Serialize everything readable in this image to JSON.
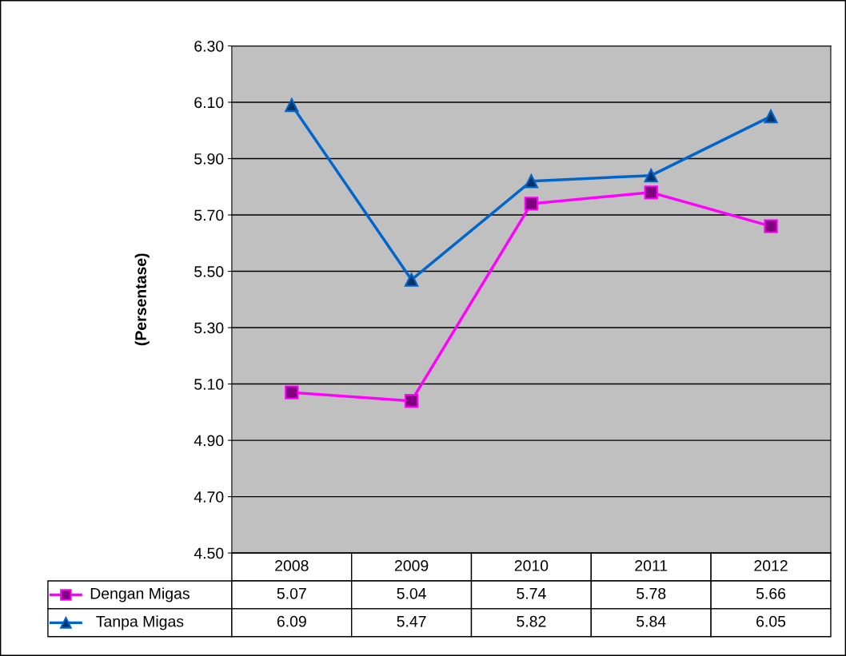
{
  "chart_data": {
    "type": "line",
    "ylabel": "(Persentase)",
    "categories": [
      "2008",
      "2009",
      "2010",
      "2011",
      "2012"
    ],
    "series": [
      {
        "name": "Dengan Migas",
        "color": "#ff00ff",
        "marker": "square",
        "values": [
          5.07,
          5.04,
          5.74,
          5.78,
          5.66
        ]
      },
      {
        "name": "Tanpa Migas",
        "color": "#0066cc",
        "marker": "triangle",
        "values": [
          6.09,
          5.47,
          5.82,
          5.84,
          6.05
        ]
      }
    ],
    "ylim": [
      4.5,
      6.3
    ],
    "yticks": [
      {
        "value": 4.5,
        "label": "4.50"
      },
      {
        "value": 4.7,
        "label": "4.70"
      },
      {
        "value": 4.9,
        "label": "4.90"
      },
      {
        "value": 5.1,
        "label": "5.10"
      },
      {
        "value": 5.3,
        "label": "5.30"
      },
      {
        "value": 5.5,
        "label": "5.50"
      },
      {
        "value": 5.7,
        "label": "5.70"
      },
      {
        "value": 5.9,
        "label": "5.90"
      },
      {
        "value": 6.1,
        "label": "6.10"
      },
      {
        "value": 6.3,
        "label": "6.30"
      }
    ],
    "grid": "y",
    "data_labels": true,
    "legend": "bottom"
  }
}
